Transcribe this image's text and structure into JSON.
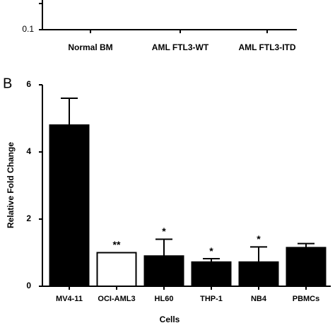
{
  "chart_data": [
    {
      "type": "bar",
      "categories": [
        "Normal BM",
        "AML FTL3-WT",
        "AML FTL3-ITD"
      ],
      "yticks": [
        0.1
      ]
    },
    {
      "type": "bar",
      "panel_label": "B",
      "xlabel": "Cells",
      "ylabel": "Relative Fold Change",
      "categories": [
        "MV4-11",
        "OCI-AML3",
        "HL60",
        "THP-1",
        "NB4",
        "PBMCs"
      ],
      "values": [
        4.8,
        1.0,
        0.9,
        0.72,
        0.72,
        1.15
      ],
      "errors": [
        0.8,
        null,
        0.5,
        0.1,
        0.45,
        0.12
      ],
      "annotations": [
        null,
        "**",
        "*",
        "*",
        "*",
        null
      ],
      "colors": [
        "#000000",
        "#ffffff",
        "#000000",
        "#000000",
        "#000000",
        "#000000"
      ],
      "ylim": [
        0,
        6
      ],
      "yticks": [
        0,
        2,
        4,
        6
      ]
    }
  ]
}
